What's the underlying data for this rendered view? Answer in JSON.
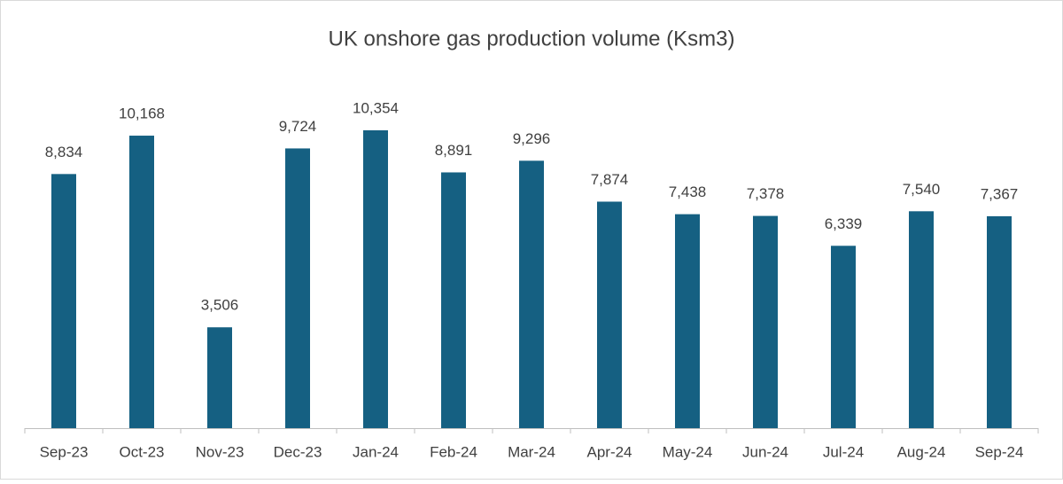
{
  "chart_data": {
    "type": "bar",
    "title": "UK onshore gas production volume (Ksm3)",
    "categories": [
      "Sep-23",
      "Oct-23",
      "Nov-23",
      "Dec-23",
      "Jan-24",
      "Feb-24",
      "Mar-24",
      "Apr-24",
      "May-24",
      "Jun-24",
      "Jul-24",
      "Aug-24",
      "Sep-24"
    ],
    "values": [
      8834,
      10168,
      3506,
      9724,
      10354,
      8891,
      9296,
      7874,
      7438,
      7378,
      6339,
      7540,
      7367
    ],
    "value_labels": [
      "8,834",
      "10,168",
      "3,506",
      "9,724",
      "10,354",
      "8,891",
      "9,296",
      "7,874",
      "7,438",
      "7,378",
      "6,339",
      "7,540",
      "7,367"
    ],
    "color": "#156082"
  }
}
